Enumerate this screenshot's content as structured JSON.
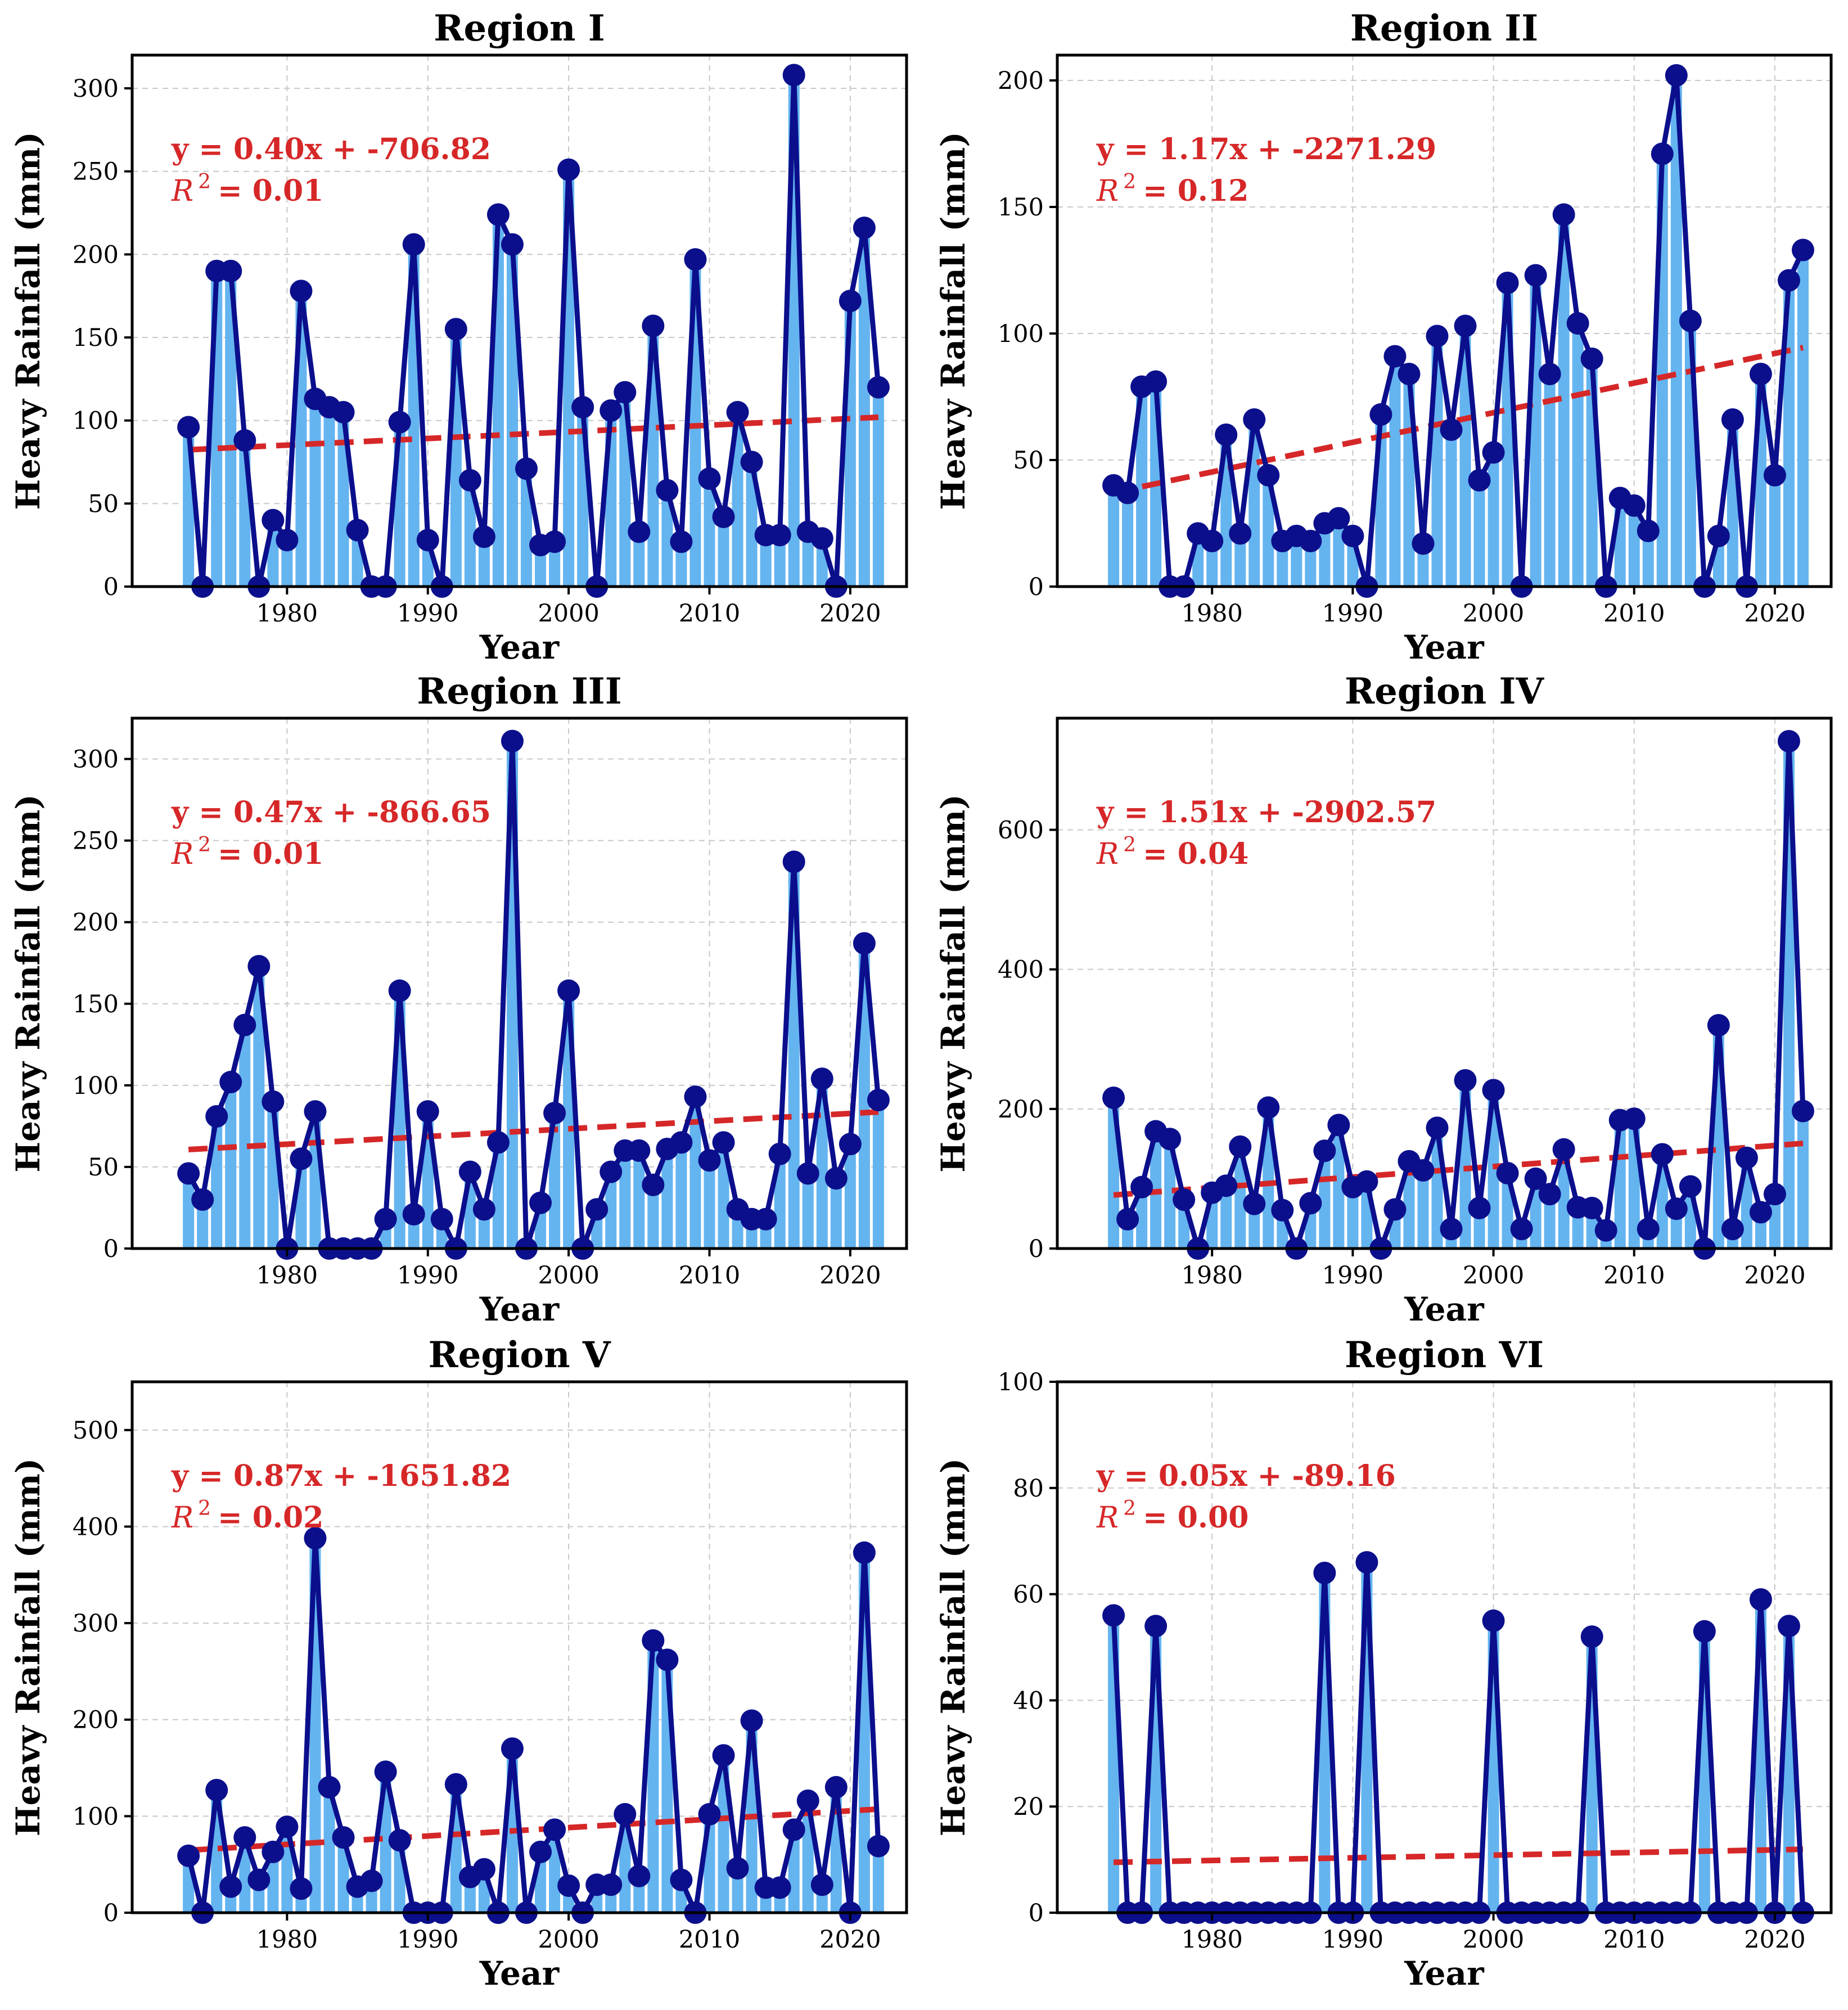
{
  "chart_data": [
    {
      "type": "bar",
      "title": "Region I",
      "xlabel": "Year",
      "ylabel": "Heavy Rainfall (mm)",
      "xlim": [
        1969,
        2024
      ],
      "ylim": [
        0,
        320
      ],
      "yticks": [
        0,
        50,
        100,
        150,
        200,
        250,
        300
      ],
      "xticks": [
        1980,
        1990,
        2000,
        2010,
        2020
      ],
      "trend_equation": "y = 0.40x + -706.82",
      "r2_label": "R",
      "r2_exp": "2",
      "r2_value": "= 0.01",
      "trend": {
        "slope": 0.4,
        "intercept": -706.82
      },
      "x": [
        1973,
        1974,
        1975,
        1976,
        1977,
        1978,
        1979,
        1980,
        1981,
        1982,
        1983,
        1984,
        1985,
        1986,
        1987,
        1988,
        1989,
        1990,
        1991,
        1992,
        1993,
        1994,
        1995,
        1996,
        1997,
        1998,
        1999,
        2000,
        2001,
        2002,
        2003,
        2004,
        2005,
        2006,
        2007,
        2008,
        2009,
        2010,
        2011,
        2012,
        2013,
        2014,
        2015,
        2016,
        2017,
        2018,
        2019,
        2020,
        2021,
        2022
      ],
      "values": [
        96,
        0,
        190,
        190,
        88,
        0,
        40,
        28,
        178,
        113,
        108,
        105,
        34,
        0,
        0,
        99,
        206,
        28,
        0,
        155,
        64,
        30,
        224,
        206,
        71,
        25,
        27,
        251,
        108,
        0,
        106,
        117,
        33,
        157,
        58,
        27,
        197,
        65,
        42,
        105,
        75,
        31,
        31,
        308,
        33,
        29,
        0,
        172,
        216,
        120
      ]
    },
    {
      "type": "bar",
      "title": "Region II",
      "xlabel": "Year",
      "ylabel": "Heavy Rainfall (mm)",
      "xlim": [
        1969,
        2024
      ],
      "ylim": [
        0,
        210
      ],
      "yticks": [
        0,
        50,
        100,
        150,
        200
      ],
      "xticks": [
        1980,
        1990,
        2000,
        2010,
        2020
      ],
      "trend_equation": "y = 1.17x + -2271.29",
      "r2_label": "R",
      "r2_exp": "2",
      "r2_value": "= 0.12",
      "trend": {
        "slope": 1.17,
        "intercept": -2271.29
      },
      "x": [
        1973,
        1974,
        1975,
        1976,
        1977,
        1978,
        1979,
        1980,
        1981,
        1982,
        1983,
        1984,
        1985,
        1986,
        1987,
        1988,
        1989,
        1990,
        1991,
        1992,
        1993,
        1994,
        1995,
        1996,
        1997,
        1998,
        1999,
        2000,
        2001,
        2002,
        2003,
        2004,
        2005,
        2006,
        2007,
        2008,
        2009,
        2010,
        2011,
        2012,
        2013,
        2014,
        2015,
        2016,
        2017,
        2018,
        2019,
        2020,
        2021,
        2022
      ],
      "values": [
        40,
        37,
        79,
        81,
        0,
        0,
        21,
        18,
        60,
        21,
        66,
        44,
        18,
        20,
        18,
        25,
        27,
        20,
        0,
        68,
        91,
        84,
        17,
        99,
        62,
        103,
        42,
        53,
        120,
        0,
        123,
        84,
        147,
        104,
        90,
        0,
        35,
        32,
        22,
        171,
        202,
        105,
        0,
        20,
        66,
        0,
        84,
        44,
        121,
        133
      ]
    },
    {
      "type": "bar",
      "title": "Region III",
      "xlabel": "Year",
      "ylabel": "Heavy Rainfall (mm)",
      "xlim": [
        1969,
        2024
      ],
      "ylim": [
        0,
        325
      ],
      "yticks": [
        0,
        50,
        100,
        150,
        200,
        250,
        300
      ],
      "xticks": [
        1980,
        1990,
        2000,
        2010,
        2020
      ],
      "trend_equation": "y = 0.47x + -866.65",
      "r2_label": "R",
      "r2_exp": "2",
      "r2_value": "= 0.01",
      "trend": {
        "slope": 0.47,
        "intercept": -866.65
      },
      "x": [
        1973,
        1974,
        1975,
        1976,
        1977,
        1978,
        1979,
        1980,
        1981,
        1982,
        1983,
        1984,
        1985,
        1986,
        1987,
        1988,
        1989,
        1990,
        1991,
        1992,
        1993,
        1994,
        1995,
        1996,
        1997,
        1998,
        1999,
        2000,
        2001,
        2002,
        2003,
        2004,
        2005,
        2006,
        2007,
        2008,
        2009,
        2010,
        2011,
        2012,
        2013,
        2014,
        2015,
        2016,
        2017,
        2018,
        2019,
        2020,
        2021,
        2022
      ],
      "values": [
        46,
        30,
        81,
        102,
        137,
        173,
        90,
        0,
        55,
        84,
        0,
        0,
        0,
        0,
        18,
        158,
        21,
        84,
        18,
        0,
        47,
        24,
        65,
        311,
        0,
        28,
        83,
        158,
        0,
        24,
        47,
        60,
        60,
        39,
        61,
        65,
        93,
        54,
        65,
        24,
        18,
        18,
        58,
        237,
        46,
        104,
        43,
        64,
        187,
        91
      ]
    },
    {
      "type": "bar",
      "title": "Region IV",
      "xlabel": "Year",
      "ylabel": "Heavy Rainfall (mm)",
      "xlim": [
        1969,
        2024
      ],
      "ylim": [
        0,
        760
      ],
      "yticks": [
        0,
        200,
        400,
        600
      ],
      "xticks": [
        1980,
        1990,
        2000,
        2010,
        2020
      ],
      "trend_equation": "y = 1.51x + -2902.57",
      "r2_label": "R",
      "r2_exp": "2",
      "r2_value": "= 0.04",
      "trend": {
        "slope": 1.51,
        "intercept": -2902.57
      },
      "x": [
        1973,
        1974,
        1975,
        1976,
        1977,
        1978,
        1979,
        1980,
        1981,
        1982,
        1983,
        1984,
        1985,
        1986,
        1987,
        1988,
        1989,
        1990,
        1991,
        1992,
        1993,
        1994,
        1995,
        1996,
        1997,
        1998,
        1999,
        2000,
        2001,
        2002,
        2003,
        2004,
        2005,
        2006,
        2007,
        2008,
        2009,
        2010,
        2011,
        2012,
        2013,
        2014,
        2015,
        2016,
        2017,
        2018,
        2019,
        2020,
        2021,
        2022
      ],
      "values": [
        216,
        42,
        88,
        168,
        157,
        70,
        0,
        80,
        90,
        146,
        64,
        202,
        55,
        0,
        65,
        140,
        177,
        88,
        96,
        0,
        56,
        125,
        112,
        173,
        28,
        241,
        58,
        227,
        108,
        28,
        100,
        78,
        142,
        59,
        58,
        26,
        184,
        186,
        28,
        135,
        57,
        89,
        0,
        320,
        28,
        130,
        52,
        78,
        727,
        197
      ]
    },
    {
      "type": "bar",
      "title": "Region V",
      "xlabel": "Year",
      "ylabel": "Heavy Rainfall (mm)",
      "xlim": [
        1969,
        2024
      ],
      "ylim": [
        0,
        550
      ],
      "yticks": [
        0,
        100,
        200,
        300,
        400,
        500
      ],
      "xticks": [
        1980,
        1990,
        2000,
        2010,
        2020
      ],
      "trend_equation": "y = 0.87x + -1651.82",
      "r2_label": "R",
      "r2_exp": "2",
      "r2_value": "= 0.02",
      "trend": {
        "slope": 0.87,
        "intercept": -1651.82
      },
      "x": [
        1973,
        1974,
        1975,
        1976,
        1977,
        1978,
        1979,
        1980,
        1981,
        1982,
        1983,
        1984,
        1985,
        1986,
        1987,
        1988,
        1989,
        1990,
        1991,
        1992,
        1993,
        1994,
        1995,
        1996,
        1997,
        1998,
        1999,
        2000,
        2001,
        2002,
        2003,
        2004,
        2005,
        2006,
        2007,
        2008,
        2009,
        2010,
        2011,
        2012,
        2013,
        2014,
        2015,
        2016,
        2017,
        2018,
        2019,
        2020,
        2021,
        2022
      ],
      "values": [
        59,
        0,
        127,
        27,
        78,
        34,
        63,
        89,
        25,
        388,
        130,
        78,
        27,
        33,
        146,
        75,
        0,
        0,
        0,
        133,
        37,
        45,
        0,
        170,
        0,
        63,
        86,
        28,
        0,
        29,
        29,
        102,
        38,
        282,
        262,
        34,
        0,
        102,
        163,
        46,
        199,
        26,
        26,
        86,
        116,
        29,
        130,
        0,
        373,
        69
      ]
    },
    {
      "type": "bar",
      "title": "Region VI",
      "xlabel": "Year",
      "ylabel": "Heavy Rainfall (mm)",
      "xlim": [
        1969,
        2024
      ],
      "ylim": [
        0,
        100
      ],
      "yticks": [
        0,
        20,
        40,
        60,
        80,
        100
      ],
      "xticks": [
        1980,
        1990,
        2000,
        2010,
        2020
      ],
      "trend_equation": "y = 0.05x + -89.16",
      "r2_label": "R",
      "r2_exp": "2",
      "r2_value": "= 0.00",
      "trend": {
        "slope": 0.05,
        "intercept": -89.16
      },
      "x": [
        1973,
        1974,
        1975,
        1976,
        1977,
        1978,
        1979,
        1980,
        1981,
        1982,
        1983,
        1984,
        1985,
        1986,
        1987,
        1988,
        1989,
        1990,
        1991,
        1992,
        1993,
        1994,
        1995,
        1996,
        1997,
        1998,
        1999,
        2000,
        2001,
        2002,
        2003,
        2004,
        2005,
        2006,
        2007,
        2008,
        2009,
        2010,
        2011,
        2012,
        2013,
        2014,
        2015,
        2016,
        2017,
        2018,
        2019,
        2020,
        2021,
        2022
      ],
      "values": [
        56,
        0,
        0,
        54,
        0,
        0,
        0,
        0,
        0,
        0,
        0,
        0,
        0,
        0,
        0,
        64,
        0,
        0,
        66,
        0,
        0,
        0,
        0,
        0,
        0,
        0,
        0,
        55,
        0,
        0,
        0,
        0,
        0,
        0,
        52,
        0,
        0,
        0,
        0,
        0,
        0,
        0,
        53,
        0,
        0,
        0,
        59,
        0,
        54,
        0
      ]
    }
  ]
}
